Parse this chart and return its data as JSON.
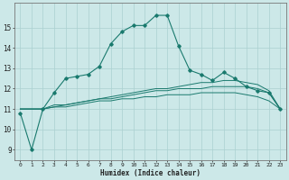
{
  "xlabel": "Humidex (Indice chaleur)",
  "background_color": "#cce8e8",
  "grid_color": "#aad0d0",
  "line_color": "#1a7a6e",
  "x_values": [
    0,
    1,
    2,
    3,
    4,
    5,
    6,
    7,
    8,
    9,
    10,
    11,
    12,
    13,
    14,
    15,
    16,
    17,
    18,
    19,
    20,
    21,
    22,
    23
  ],
  "ylim": [
    8.5,
    16.2
  ],
  "xlim": [
    -0.5,
    23.5
  ],
  "yticks": [
    9,
    10,
    11,
    12,
    13,
    14,
    15
  ],
  "line1": [
    10.8,
    9.0,
    11.0,
    11.8,
    12.5,
    12.6,
    12.7,
    13.1,
    14.2,
    14.8,
    15.1,
    15.1,
    15.6,
    15.6,
    14.1,
    12.9,
    12.7,
    12.4,
    12.8,
    12.5,
    12.1,
    11.9,
    11.8,
    11.0
  ],
  "line2": [
    11.0,
    11.0,
    11.0,
    11.2,
    11.2,
    11.3,
    11.4,
    11.5,
    11.6,
    11.7,
    11.8,
    11.9,
    12.0,
    12.0,
    12.1,
    12.2,
    12.3,
    12.3,
    12.4,
    12.4,
    12.3,
    12.2,
    11.9,
    11.0
  ],
  "line3": [
    11.0,
    11.0,
    11.0,
    11.1,
    11.2,
    11.3,
    11.4,
    11.5,
    11.5,
    11.6,
    11.7,
    11.8,
    11.9,
    11.9,
    12.0,
    12.0,
    12.0,
    12.1,
    12.1,
    12.1,
    12.1,
    12.0,
    11.8,
    11.0
  ],
  "line4": [
    11.0,
    11.0,
    11.0,
    11.1,
    11.1,
    11.2,
    11.3,
    11.4,
    11.4,
    11.5,
    11.5,
    11.6,
    11.6,
    11.7,
    11.7,
    11.7,
    11.8,
    11.8,
    11.8,
    11.8,
    11.7,
    11.6,
    11.4,
    11.0
  ]
}
